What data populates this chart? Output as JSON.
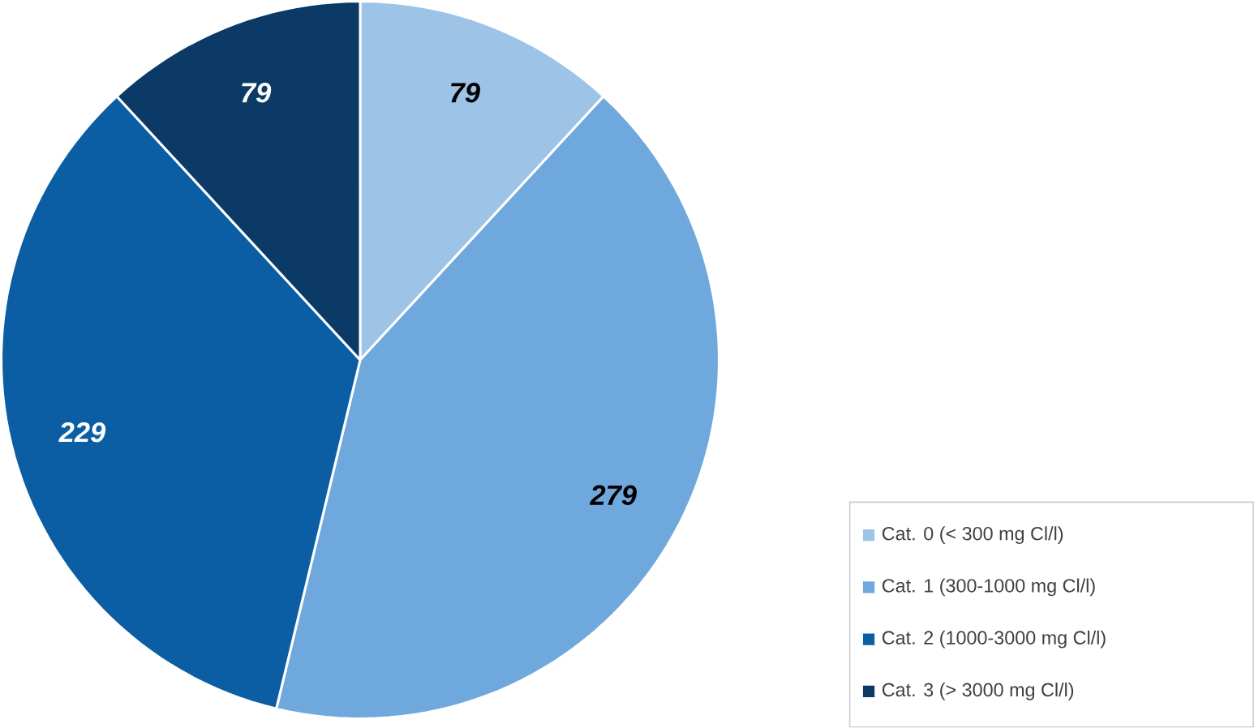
{
  "chart_data": {
    "type": "pie",
    "categories": [
      "Cat. 0 (< 300 mg Cl/l)",
      "Cat. 1  (300-1000 mg Cl/l)",
      "Cat. 2 (1000-3000 mg Cl/l)",
      "Cat. 3 (> 3000 mg Cl/l)"
    ],
    "values": [
      79,
      279,
      229,
      79
    ],
    "colors": [
      "#9dc3e6",
      "#6fa8dc",
      "#0b5ea3",
      "#0c3a66"
    ],
    "data_labels": true,
    "legend": "bottom right"
  }
}
